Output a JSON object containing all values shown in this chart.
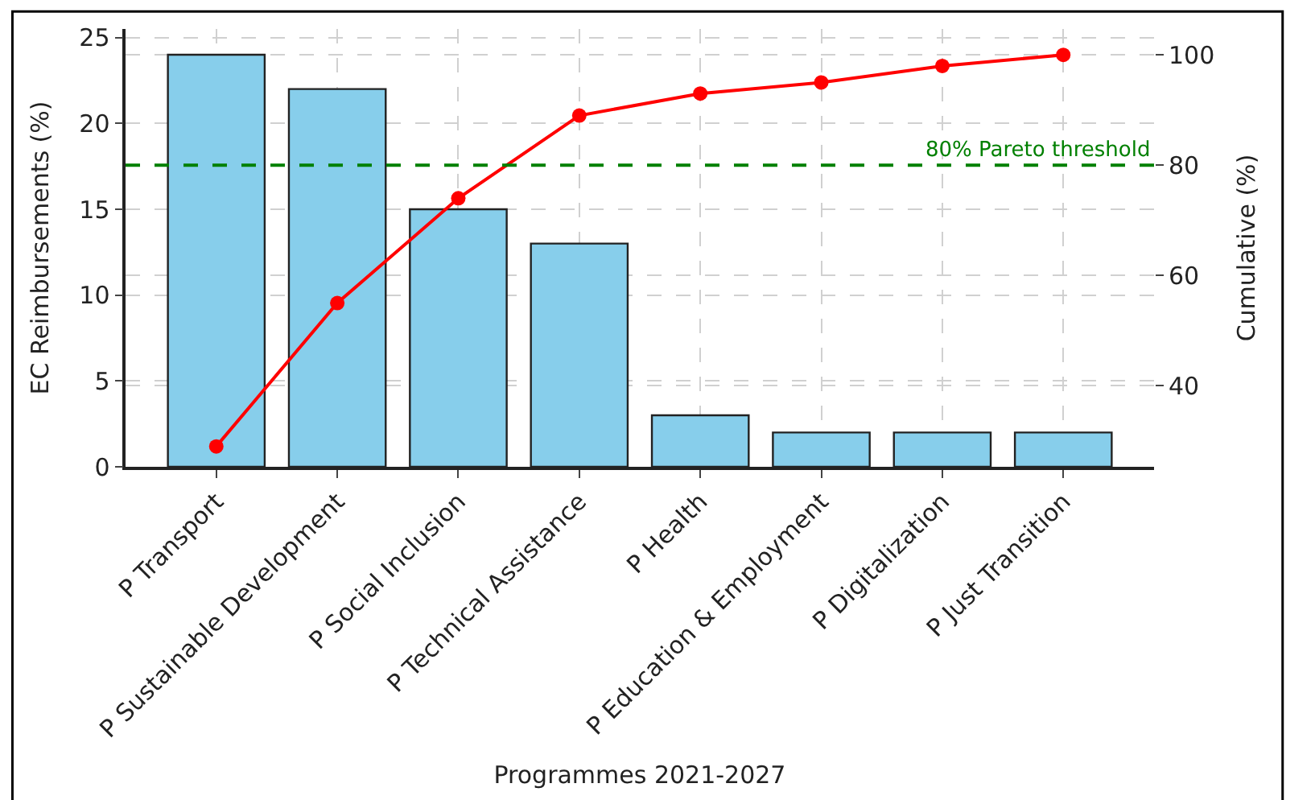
{
  "chart_data": {
    "type": "bar",
    "xlabel": "Programmes 2021-2027",
    "ylabel": "EC Reimbursements (%)",
    "y2label": "Cumulative (%)",
    "categories": [
      "P Transport",
      "P Sustainable Development",
      "P Social Inclusion",
      "P Technical Assistance",
      "P Health",
      "P Education & Employment",
      "P Digitalization",
      "P Just Transition"
    ],
    "series": [
      {
        "color": "#87ceeb",
        "values": [
          24,
          22,
          15,
          13,
          3,
          2,
          2,
          2
        ]
      },
      {
        "type": "line",
        "axis": "y2",
        "color": "#ff0000",
        "marker": "circle",
        "line_style": "solid",
        "values": [
          29,
          55,
          74,
          89,
          93,
          95,
          98,
          100
        ]
      }
    ],
    "ylim": [
      0,
      25.5
    ],
    "yticks": [
      0,
      5,
      10,
      15,
      20,
      25
    ],
    "y2lim": [
      25.3,
      104.7
    ],
    "y2ticks": [
      40,
      60,
      80,
      100
    ],
    "ref_lines": [
      {
        "axis": "y2",
        "value": 80,
        "label": "80% Pareto threshold",
        "color": "#008000",
        "line_style": "dashed"
      }
    ],
    "grid": true
  }
}
